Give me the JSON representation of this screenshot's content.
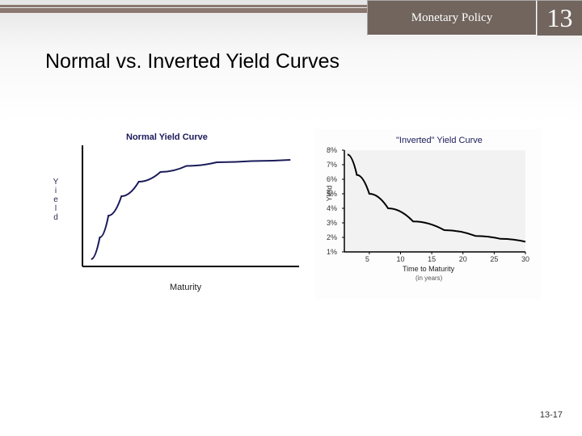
{
  "header": {
    "title": "Monetary Policy",
    "chapter_number": "13",
    "bar_color": "#8a7870",
    "box_color": "#71655e",
    "text_color": "#ffffff"
  },
  "slide": {
    "title": "Normal vs. Inverted Yield Curves",
    "footer": "13-17",
    "bg_gradient_top": "#e5e5e5",
    "bg_gradient_bottom": "#ffffff",
    "title_fontsize": 25
  },
  "chart_normal": {
    "type": "line",
    "title": "Normal Yield Curve",
    "title_color": "#1a1a5a",
    "title_fontsize": 11,
    "y_label_vertical": "Yield",
    "x_label": "Maturity",
    "axis_color": "#000000",
    "line_color": "#1a1a5a",
    "line_width": 2,
    "background": "#ffffff",
    "x_range": [
      0,
      100
    ],
    "y_range": [
      0,
      100
    ],
    "points": [
      [
        4,
        6
      ],
      [
        8,
        24
      ],
      [
        12,
        42
      ],
      [
        18,
        58
      ],
      [
        26,
        70
      ],
      [
        36,
        78
      ],
      [
        48,
        83
      ],
      [
        62,
        86
      ],
      [
        78,
        87
      ],
      [
        96,
        88
      ]
    ]
  },
  "chart_inverted": {
    "type": "line",
    "title": "\"Inverted\" Yield Curve",
    "title_color": "#333333",
    "title_fontsize": 11,
    "y_label": "Yield",
    "x_label": "Time to Maturity",
    "x_sublabel": "(in years)",
    "axis_color": "#000000",
    "line_color": "#000000",
    "line_width": 2,
    "background": "#ffffff",
    "plot_background": "#f2f2f2",
    "y_ticks": [
      "1%",
      "2%",
      "3%",
      "4%",
      "5%",
      "6%",
      "7%",
      "8%"
    ],
    "y_tick_values": [
      1,
      2,
      3,
      4,
      5,
      6,
      7,
      8
    ],
    "x_ticks": [
      "5",
      "10",
      "15",
      "20",
      "25",
      "30"
    ],
    "x_tick_values": [
      5,
      10,
      15,
      20,
      25,
      30
    ],
    "x_range": [
      1,
      30
    ],
    "y_range": [
      1,
      8
    ],
    "points": [
      [
        1.5,
        7.7
      ],
      [
        3,
        6.3
      ],
      [
        5,
        5.0
      ],
      [
        8,
        4.0
      ],
      [
        12,
        3.1
      ],
      [
        17,
        2.5
      ],
      [
        22,
        2.1
      ],
      [
        26,
        1.9
      ],
      [
        30,
        1.7
      ]
    ]
  }
}
